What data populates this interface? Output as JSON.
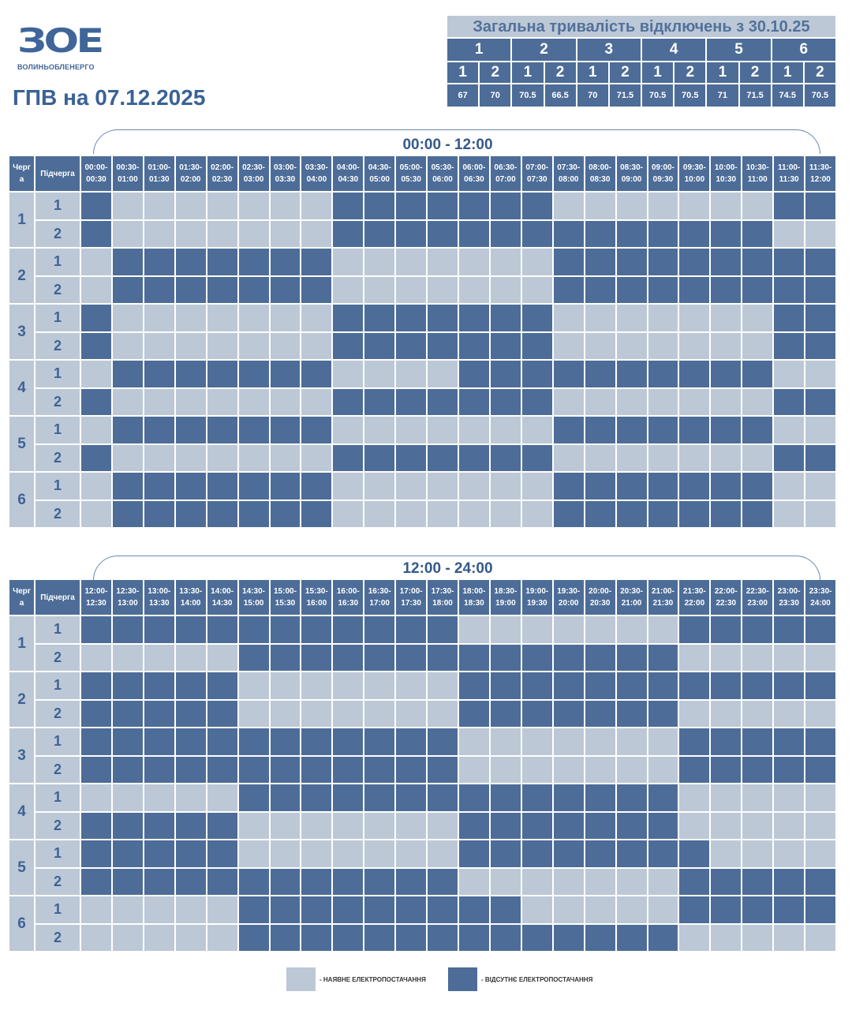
{
  "logo": {
    "mark": "ЗОЕ",
    "name": "ВОЛИНЬОБЛЕНЕРГО"
  },
  "title": "ГПВ на 07.12.2025",
  "summary": {
    "title": "Загальна тривалість відключень з 30.10.25",
    "groups": [
      "1",
      "2",
      "3",
      "4",
      "5",
      "6"
    ],
    "subgroups": [
      "1",
      "2",
      "1",
      "2",
      "1",
      "2",
      "1",
      "2",
      "1",
      "2",
      "1",
      "2"
    ],
    "values": [
      "67",
      "70",
      "70.5",
      "66.5",
      "70",
      "71.5",
      "70.5",
      "70.5",
      "71",
      "71.5",
      "74.5",
      "70.5"
    ]
  },
  "colors": {
    "available": "#bcc8d6",
    "outage": "#4d6d98"
  },
  "col_queue": "Черг а",
  "col_subqueue": "Підчерга",
  "tables": [
    {
      "range": "00:00 - 12:00",
      "slots": [
        "00:00- 00:30",
        "00:30- 01:00",
        "01:00- 01:30",
        "01:30- 02:00",
        "02:00- 02:30",
        "02:30- 03:00",
        "03:00- 03:30",
        "03:30- 04:00",
        "04:00- 04:30",
        "04:30- 05:00",
        "05:00- 05:30",
        "05:30- 06:00",
        "06:00- 06:30",
        "06:30- 07:00",
        "07:00- 07:30",
        "07:30- 08:00",
        "08:00- 08:30",
        "08:30- 09:00",
        "09:00- 09:30",
        "09:30- 10:00",
        "10:00- 10:30",
        "10:30- 11:00",
        "11:00- 11:30",
        "11:30- 12:00"
      ],
      "queues": [
        {
          "queue": "1",
          "sub": [
            {
              "label": "1",
              "outage": "100000001111111000000011"
            },
            {
              "label": "2",
              "outage": "100000001111111111111100"
            }
          ]
        },
        {
          "queue": "2",
          "sub": [
            {
              "label": "1",
              "outage": "011111110000000111111111"
            },
            {
              "label": "2",
              "outage": "011111110000000111111111"
            }
          ]
        },
        {
          "queue": "3",
          "sub": [
            {
              "label": "1",
              "outage": "100000001111111000000011"
            },
            {
              "label": "2",
              "outage": "100000001111111000000011"
            }
          ]
        },
        {
          "queue": "4",
          "sub": [
            {
              "label": "1",
              "outage": "011111110000111111111100"
            },
            {
              "label": "2",
              "outage": "100000001111111000000011"
            }
          ]
        },
        {
          "queue": "5",
          "sub": [
            {
              "label": "1",
              "outage": "011111110000000111111100"
            },
            {
              "label": "2",
              "outage": "100000001111111000000011"
            }
          ]
        },
        {
          "queue": "6",
          "sub": [
            {
              "label": "1",
              "outage": "011111110000000111111100"
            },
            {
              "label": "2",
              "outage": "011111110000000111111100"
            }
          ]
        }
      ]
    },
    {
      "range": "12:00 - 24:00",
      "slots": [
        "12:00- 12:30",
        "12:30- 13:00",
        "13:00- 13:30",
        "13:30- 14:00",
        "14:00- 14:30",
        "14:30- 15:00",
        "15:00- 15:30",
        "15:30- 16:00",
        "16:00- 16:30",
        "16:30- 17:00",
        "17:00- 17:30",
        "17:30- 18:00",
        "18:00- 18:30",
        "18:30- 19:00",
        "19:00- 19:30",
        "19:30- 20:00",
        "20:00- 20:30",
        "20:30- 21:00",
        "21:00- 21:30",
        "21:30- 22:00",
        "22:00- 22:30",
        "22:30- 23:00",
        "23:00- 23:30",
        "23:30- 24:00"
      ],
      "queues": [
        {
          "queue": "1",
          "sub": [
            {
              "label": "1",
              "outage": "111111111111000000011111"
            },
            {
              "label": "2",
              "outage": "000001111111111111100000"
            }
          ]
        },
        {
          "queue": "2",
          "sub": [
            {
              "label": "1",
              "outage": "111110000000111111111111"
            },
            {
              "label": "2",
              "outage": "111110000000111111100000"
            }
          ]
        },
        {
          "queue": "3",
          "sub": [
            {
              "label": "1",
              "outage": "111111111111000000011111"
            },
            {
              "label": "2",
              "outage": "111111111111000000011111"
            }
          ]
        },
        {
          "queue": "4",
          "sub": [
            {
              "label": "1",
              "outage": "000001111111111111100000"
            },
            {
              "label": "2",
              "outage": "111110000000111111100000"
            }
          ]
        },
        {
          "queue": "5",
          "sub": [
            {
              "label": "1",
              "outage": "111110000000111111110000"
            },
            {
              "label": "2",
              "outage": "111111111111000000011111"
            }
          ]
        },
        {
          "queue": "6",
          "sub": [
            {
              "label": "1",
              "outage": "000001111111110000011111"
            },
            {
              "label": "2",
              "outage": "000001111111111111100000"
            }
          ]
        }
      ]
    }
  ],
  "legend": {
    "available": "- НАЯВНЕ ЕЛЕКТРОПОСТАЧАННЯ",
    "outage": "- ВІДСУТНЄ ЕЛЕКТРОПОСТАЧАННЯ"
  }
}
